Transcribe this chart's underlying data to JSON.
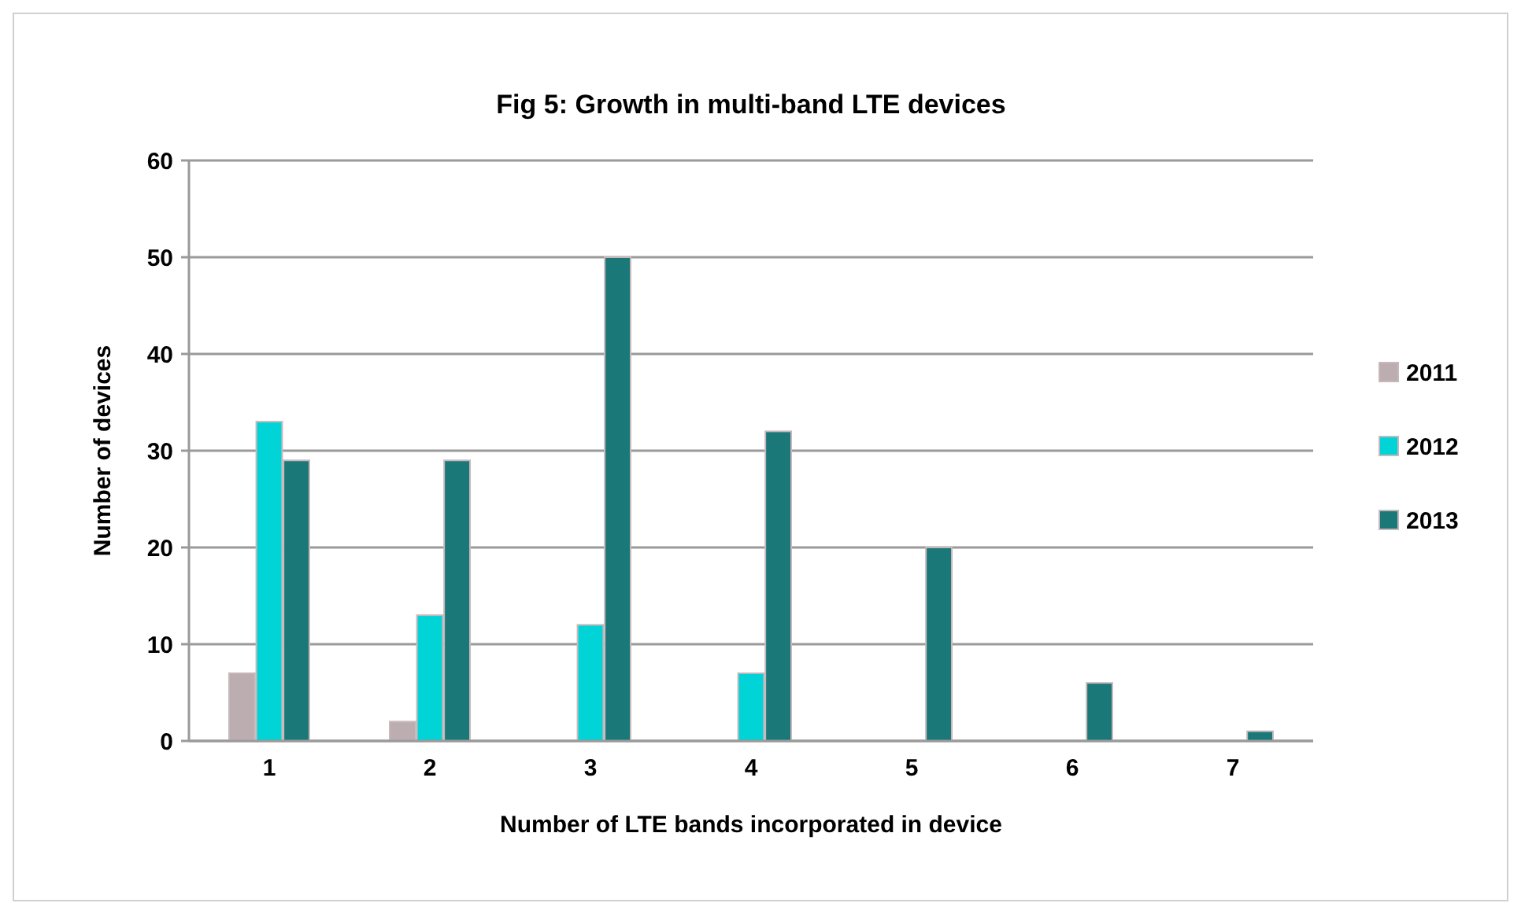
{
  "chart_data": {
    "type": "bar",
    "title": "Fig 5: Growth in multi-band LTE devices",
    "xlabel": "Number of LTE bands incorporated in device",
    "ylabel": "Number of devices",
    "categories": [
      "1",
      "2",
      "3",
      "4",
      "5",
      "6",
      "7"
    ],
    "series": [
      {
        "name": "2011",
        "color": "#bcadb1",
        "values": [
          7,
          2,
          null,
          null,
          null,
          null,
          null
        ]
      },
      {
        "name": "2012",
        "color": "#00d4d6",
        "values": [
          33,
          13,
          12,
          7,
          null,
          null,
          null
        ]
      },
      {
        "name": "2013",
        "color": "#1a7878",
        "values": [
          29,
          29,
          50,
          32,
          20,
          6,
          1
        ]
      }
    ],
    "ylim": [
      0,
      60
    ],
    "yticks": [
      0,
      10,
      20,
      30,
      40,
      50,
      60
    ],
    "grid": "y",
    "legend": "right"
  }
}
